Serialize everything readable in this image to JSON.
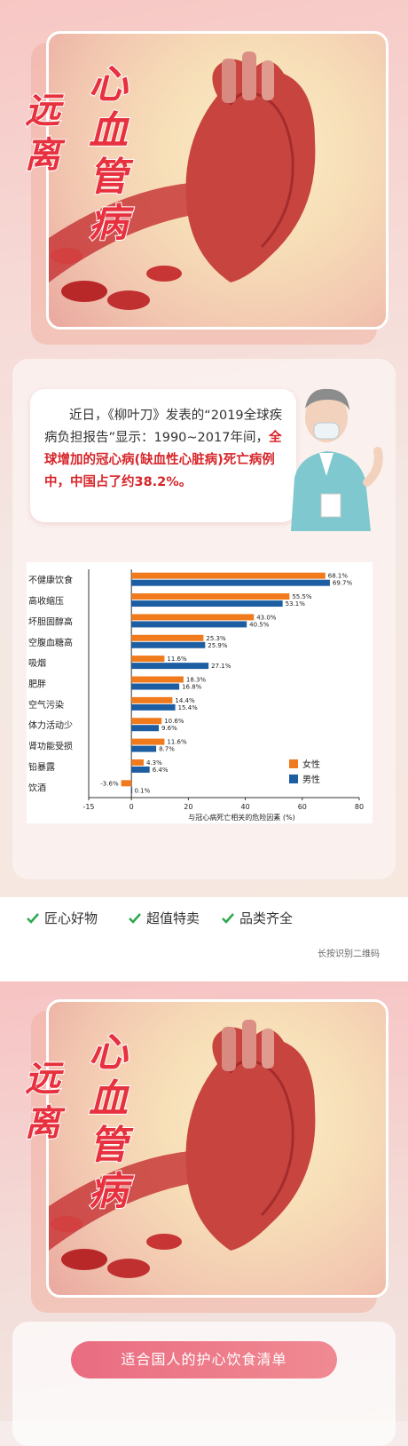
{
  "hero": {
    "title_left": "远离",
    "title_right": "心血管病"
  },
  "doctor": {
    "intro": "近日，《柳叶刀》发表的“2019全球疾病负担报告”显示：1990~2017年间，",
    "highlight": "全球增加的冠心病(缺血性心脏病)死亡病例中，中国占了约38.2%。"
  },
  "chart_data": {
    "type": "bar",
    "orientation": "horizontal",
    "categories": [
      "不健康饮食",
      "高收缩压",
      "坏胆固醇高",
      "空腹血糖高",
      "吸烟",
      "肥胖",
      "空气污染",
      "体力活动少",
      "肾功能受损",
      "铅暴露",
      "饮酒"
    ],
    "series": [
      {
        "name": "女性",
        "color": "#f07a1c",
        "values": [
          68.1,
          55.5,
          43.0,
          25.3,
          11.6,
          18.3,
          14.4,
          10.6,
          11.6,
          4.3,
          -3.6
        ],
        "labels": [
          "68.1%",
          "55.5%",
          "43.0%",
          "25.3%",
          "11.6%",
          "18.3%",
          "14.4%",
          "10.6%",
          "11.6%",
          "4.3%",
          "-3.6%"
        ]
      },
      {
        "name": "男性",
        "color": "#1d5ea3",
        "values": [
          69.7,
          53.1,
          40.5,
          25.9,
          27.1,
          16.8,
          15.4,
          9.6,
          8.7,
          6.4,
          0.1
        ],
        "labels": [
          "69.7%",
          "53.1%",
          "40.5%",
          "25.9%",
          "27.1%",
          "16.8%",
          "15.4%",
          "9.6%",
          "8.7%",
          "6.4%",
          "0.1%"
        ]
      }
    ],
    "xlabel": "与冠心病死亡相关的危险因素 (%)",
    "xlim": [
      -15,
      80
    ],
    "xticks": [
      "-15",
      "0",
      "20",
      "40",
      "60",
      "80"
    ],
    "legend_position": "bottom-right",
    "grid": false
  },
  "features": [
    "匠心好物",
    "超值特卖",
    "品类齐全"
  ],
  "scan_hint": "长按识别二维码",
  "diet_title": "适合国人的护心饮食清单",
  "colors": {
    "accent": "#e8313f",
    "check": "#2fa84f",
    "pill": "#ec7487"
  }
}
